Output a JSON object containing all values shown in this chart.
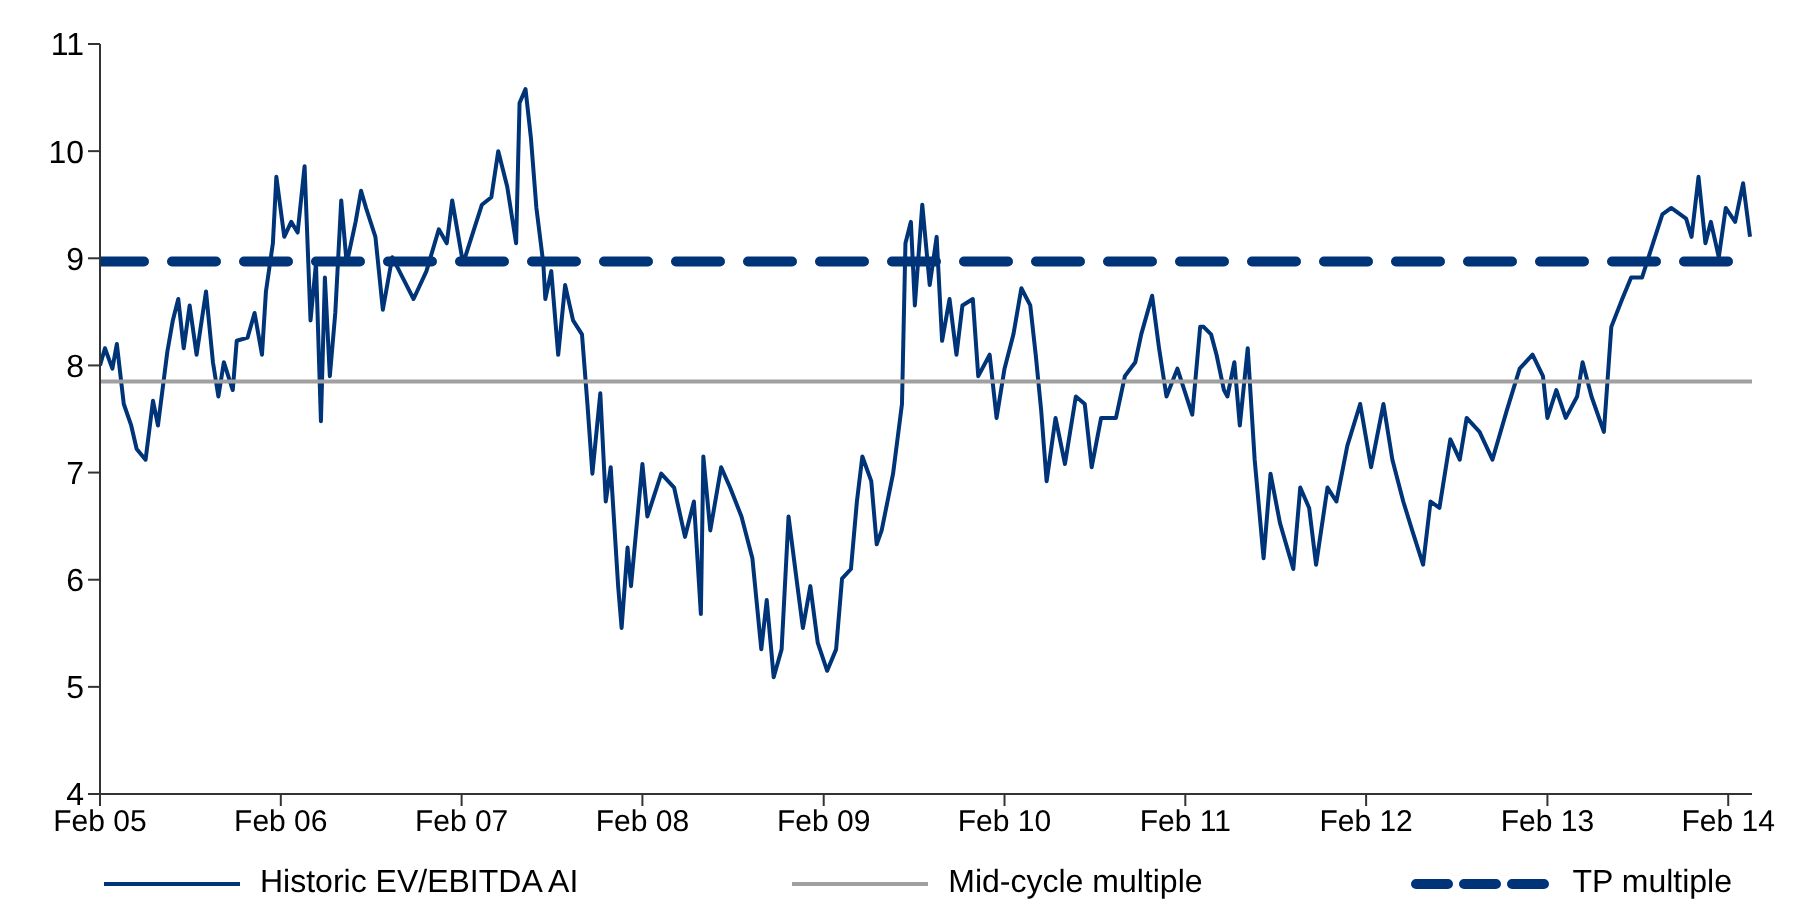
{
  "chart_data": {
    "type": "line",
    "xlim": [
      "2005-02-01",
      "2014-03-21"
    ],
    "xticks": [
      {
        "value": "2005-02-01",
        "label": "Feb 05"
      },
      {
        "value": "2006-02-01",
        "label": "Feb 06"
      },
      {
        "value": "2007-02-01",
        "label": "Feb 07"
      },
      {
        "value": "2008-02-01",
        "label": "Feb 08"
      },
      {
        "value": "2009-02-01",
        "label": "Feb 09"
      },
      {
        "value": "2010-02-01",
        "label": "Feb 10"
      },
      {
        "value": "2011-02-01",
        "label": "Feb 11"
      },
      {
        "value": "2012-02-01",
        "label": "Feb 12"
      },
      {
        "value": "2013-02-01",
        "label": "Feb 13"
      },
      {
        "value": "2014-02-01",
        "label": "Feb 14"
      }
    ],
    "ylim": [
      4,
      11
    ],
    "yticks": [
      4,
      5,
      6,
      7,
      8,
      9,
      10,
      11
    ],
    "legend": "bottom",
    "marker": "none",
    "series": [
      {
        "name": "Historic EV/EBITDA AI",
        "color": "#003478",
        "line_style": "solid",
        "x": [
          "2005-02-01",
          "2005-02-11",
          "2005-02-26",
          "2005-03-07",
          "2005-03-21",
          "2005-04-05",
          "2005-04-16",
          "2005-05-04",
          "2005-05-19",
          "2005-05-29",
          "2005-06-17",
          "2005-06-28",
          "2005-07-09",
          "2005-07-20",
          "2005-08-01",
          "2005-08-15",
          "2005-09-03",
          "2005-09-17",
          "2005-09-28",
          "2005-10-09",
          "2005-10-27",
          "2005-11-04",
          "2005-11-26",
          "2005-12-10",
          "2005-12-25",
          "2006-01-02",
          "2006-01-16",
          "2006-01-23",
          "2006-02-08",
          "2006-02-22",
          "2006-03-07",
          "2006-03-21",
          "2006-04-02",
          "2006-04-13",
          "2006-04-23",
          "2006-05-01",
          "2006-05-11",
          "2006-05-22",
          "2006-06-03",
          "2006-06-14",
          "2006-07-02",
          "2006-07-13",
          "2006-07-23",
          "2006-08-11",
          "2006-08-26",
          "2006-09-14",
          "2006-10-05",
          "2006-10-27",
          "2006-11-22",
          "2006-12-17",
          "2007-01-02",
          "2007-01-13",
          "2007-02-04",
          "2007-02-26",
          "2007-03-14",
          "2007-04-02",
          "2007-04-16",
          "2007-05-04",
          "2007-05-22",
          "2007-05-29",
          "2007-06-10",
          "2007-06-21",
          "2007-07-02",
          "2007-07-16",
          "2007-07-20",
          "2007-08-01",
          "2007-08-15",
          "2007-08-29",
          "2007-09-14",
          "2007-10-02",
          "2007-10-13",
          "2007-10-23",
          "2007-11-08",
          "2007-11-19",
          "2007-11-29",
          "2007-12-14",
          "2007-12-21",
          "2008-01-02",
          "2008-01-09",
          "2008-02-01",
          "2008-02-11",
          "2008-03-10",
          "2008-04-05",
          "2008-04-27",
          "2008-05-15",
          "2008-05-29",
          "2008-06-03",
          "2008-06-17",
          "2008-07-09",
          "2008-07-27",
          "2008-08-19",
          "2008-09-10",
          "2008-09-28",
          "2008-10-09",
          "2008-10-23",
          "2008-11-08",
          "2008-11-22",
          "2008-12-10",
          "2008-12-21",
          "2009-01-05",
          "2009-01-20",
          "2009-02-08",
          "2009-02-26",
          "2009-03-10",
          "2009-03-28",
          "2009-04-09",
          "2009-04-20",
          "2009-05-08",
          "2009-05-19",
          "2009-05-29",
          "2009-06-21",
          "2009-07-09",
          "2009-07-16",
          "2009-07-27",
          "2009-08-04",
          "2009-08-19",
          "2009-09-03",
          "2009-09-17",
          "2009-09-28",
          "2009-10-13",
          "2009-10-27",
          "2009-11-08",
          "2009-11-29",
          "2009-12-10",
          "2010-01-02",
          "2010-01-16",
          "2010-02-01",
          "2010-02-19",
          "2010-03-07",
          "2010-03-25",
          "2010-04-05",
          "2010-04-16",
          "2010-04-27",
          "2010-05-15",
          "2010-06-03",
          "2010-06-25",
          "2010-07-13",
          "2010-07-27",
          "2010-08-15",
          "2010-09-14",
          "2010-10-02",
          "2010-10-23",
          "2010-11-04",
          "2010-11-26",
          "2010-12-10",
          "2010-12-25",
          "2011-01-16",
          "2011-02-15",
          "2011-03-03",
          "2011-03-10",
          "2011-03-25",
          "2011-04-05",
          "2011-04-20",
          "2011-04-27",
          "2011-05-11",
          "2011-05-22",
          "2011-06-07",
          "2011-06-21",
          "2011-07-09",
          "2011-07-23",
          "2011-08-11",
          "2011-09-07",
          "2011-09-21",
          "2011-10-09",
          "2011-10-23",
          "2011-11-15",
          "2011-12-03",
          "2011-12-25",
          "2012-01-20",
          "2012-02-11",
          "2012-03-07",
          "2012-03-25",
          "2012-04-16",
          "2012-05-04",
          "2012-05-26",
          "2012-06-10",
          "2012-06-28",
          "2012-07-20",
          "2012-08-08",
          "2012-08-22",
          "2012-09-17",
          "2012-10-13",
          "2012-11-11",
          "2012-12-07",
          "2013-01-02",
          "2013-01-23",
          "2013-02-01",
          "2013-02-19",
          "2013-03-10",
          "2013-04-02",
          "2013-04-13",
          "2013-05-01",
          "2013-05-26",
          "2013-06-10",
          "2013-07-02",
          "2013-07-20",
          "2013-08-11",
          "2013-08-29",
          "2013-09-21",
          "2013-10-09",
          "2013-11-08",
          "2013-11-19",
          "2013-12-03",
          "2013-12-17",
          "2013-12-28",
          "2014-01-13",
          "2014-01-27",
          "2014-02-15",
          "2014-03-03",
          "2014-03-17"
        ],
        "values": [
          8.0,
          8.16,
          7.97,
          8.2,
          7.64,
          7.44,
          7.22,
          7.12,
          7.67,
          7.44,
          8.13,
          8.42,
          8.62,
          8.16,
          8.56,
          8.1,
          8.69,
          8.03,
          7.71,
          8.03,
          7.77,
          8.23,
          8.26,
          8.49,
          8.1,
          8.69,
          9.14,
          9.76,
          9.2,
          9.34,
          9.24,
          9.86,
          8.42,
          8.95,
          7.48,
          8.82,
          7.9,
          8.49,
          9.54,
          8.95,
          9.34,
          9.63,
          9.47,
          9.2,
          8.52,
          9.01,
          8.82,
          8.62,
          8.88,
          9.27,
          9.14,
          9.54,
          8.95,
          9.27,
          9.5,
          9.57,
          10.0,
          9.67,
          9.14,
          10.45,
          10.58,
          10.12,
          9.47,
          8.95,
          8.62,
          8.88,
          8.1,
          8.75,
          8.42,
          8.29,
          7.64,
          6.99,
          7.74,
          6.73,
          7.05,
          5.94,
          5.55,
          6.3,
          5.94,
          7.08,
          6.59,
          6.99,
          6.86,
          6.4,
          6.73,
          5.68,
          7.15,
          6.46,
          7.05,
          6.86,
          6.59,
          6.2,
          5.35,
          5.81,
          5.09,
          5.35,
          6.59,
          5.94,
          5.55,
          5.94,
          5.41,
          5.15,
          5.35,
          6.01,
          6.1,
          6.73,
          7.15,
          6.92,
          6.33,
          6.46,
          6.99,
          7.64,
          9.14,
          9.34,
          8.56,
          9.5,
          8.75,
          9.2,
          8.23,
          8.62,
          8.1,
          8.56,
          8.62,
          7.9,
          8.1,
          7.51,
          7.97,
          8.29,
          8.72,
          8.56,
          8.1,
          7.58,
          6.92,
          7.51,
          7.08,
          7.71,
          7.64,
          7.05,
          7.51,
          7.51,
          7.9,
          8.03,
          8.29,
          8.65,
          8.16,
          7.71,
          7.97,
          7.54,
          8.36,
          8.36,
          8.29,
          8.1,
          7.77,
          7.71,
          8.03,
          7.44,
          8.16,
          7.12,
          6.2,
          6.99,
          6.53,
          6.1,
          6.86,
          6.67,
          6.14,
          6.86,
          6.73,
          7.25,
          7.64,
          7.05,
          7.64,
          7.12,
          6.73,
          6.46,
          6.14,
          6.73,
          6.67,
          7.31,
          7.12,
          7.51,
          7.38,
          7.12,
          7.58,
          7.97,
          8.1,
          7.9,
          7.51,
          7.77,
          7.51,
          7.71,
          8.03,
          7.71,
          7.38,
          8.36,
          8.62,
          8.82,
          8.82,
          9.08,
          9.41,
          9.47,
          9.37,
          9.2,
          9.76,
          9.14,
          9.34,
          9.01,
          9.47,
          9.34,
          9.7,
          9.2
        ]
      },
      {
        "name": "Mid-cycle multiple",
        "color": "#a0a0a0",
        "line_style": "solid",
        "x": [
          "2005-02-01",
          "2014-03-21"
        ],
        "values": [
          7.85,
          7.85
        ]
      },
      {
        "name": "TP multiple",
        "color": "#003478",
        "line_style": "dashed",
        "x": [
          "2005-02-01",
          "2014-03-21"
        ],
        "values": [
          8.97,
          8.97
        ]
      }
    ]
  }
}
